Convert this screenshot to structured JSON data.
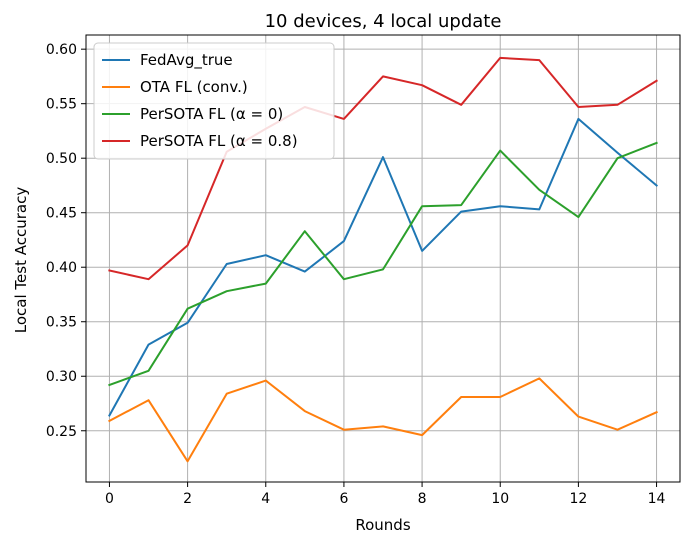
{
  "chart_data": {
    "type": "line",
    "title": "10 devices, 4 local update",
    "xlabel": "Rounds",
    "ylabel": "Local Test Accuracy",
    "xlim": [
      -0.6,
      14.6
    ],
    "ylim": [
      0.203,
      0.613
    ],
    "xticks": [
      0,
      2,
      4,
      6,
      8,
      10,
      12,
      14
    ],
    "yticks": [
      0.25,
      0.3,
      0.35,
      0.4,
      0.45,
      0.5,
      0.55,
      0.6
    ],
    "grid": true,
    "legend_position": "top-left",
    "x": [
      0,
      1,
      2,
      3,
      4,
      5,
      6,
      7,
      8,
      9,
      10,
      11,
      12,
      13,
      14
    ],
    "series": [
      {
        "name": "FedAvg_true",
        "color": "#1f77b4",
        "values": [
          0.264,
          0.329,
          0.349,
          0.403,
          0.411,
          0.396,
          0.424,
          0.501,
          0.415,
          0.451,
          0.456,
          0.453,
          0.536,
          0.505,
          0.475
        ]
      },
      {
        "name": "OTA FL (conv.)",
        "color": "#ff7f0e",
        "values": [
          0.259,
          0.278,
          0.222,
          0.284,
          0.296,
          0.268,
          0.251,
          0.254,
          0.246,
          0.281,
          0.281,
          0.298,
          0.263,
          0.251,
          0.267
        ]
      },
      {
        "name": "PerSOTA FL (α = 0)",
        "color": "#2ca02c",
        "values": [
          0.292,
          0.305,
          0.362,
          0.378,
          0.385,
          0.433,
          0.389,
          0.398,
          0.456,
          0.457,
          0.507,
          0.471,
          0.446,
          0.5,
          0.514
        ]
      },
      {
        "name": "PerSOTA FL (α = 0.8)",
        "color": "#d62728",
        "values": [
          0.397,
          0.389,
          0.42,
          0.506,
          0.527,
          0.547,
          0.536,
          0.575,
          0.567,
          0.549,
          0.592,
          0.59,
          0.547,
          0.549,
          0.571
        ]
      }
    ]
  }
}
